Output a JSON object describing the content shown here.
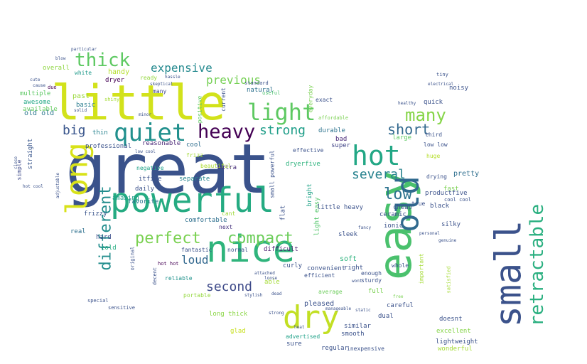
{
  "words": [
    {
      "text": "great",
      "color": "#3a528b"
    },
    {
      "text": "little",
      "color": "#d2e21b"
    },
    {
      "text": "easy",
      "color": "#4ac16d"
    },
    {
      "text": "powerful",
      "color": "#25ab82"
    },
    {
      "text": "nice",
      "color": "#2fb47c"
    },
    {
      "text": "small",
      "color": "#3b528b"
    },
    {
      "text": "dry",
      "color": "#c2df23"
    },
    {
      "text": "long",
      "color": "#d8e219"
    },
    {
      "text": "old",
      "color": "#306a8e"
    },
    {
      "text": "hot",
      "color": "#22a785"
    },
    {
      "text": "quiet",
      "color": "#21908d"
    },
    {
      "text": "heavy",
      "color": "#440154"
    },
    {
      "text": "light",
      "color": "#5ec962"
    },
    {
      "text": "thick",
      "color": "#5ec962"
    },
    {
      "text": "retractable",
      "color": "#29af7f"
    },
    {
      "text": "perfect",
      "color": "#7ad151"
    },
    {
      "text": "compact",
      "color": "#6ccd5a"
    },
    {
      "text": "many",
      "color": "#86d549"
    },
    {
      "text": "strong",
      "color": "#1f9e89"
    },
    {
      "text": "low",
      "color": "#2c728e"
    },
    {
      "text": "several",
      "color": "#26828e"
    },
    {
      "text": "short",
      "color": "#31688e"
    },
    {
      "text": "different",
      "color": "#228d8d"
    },
    {
      "text": "big",
      "color": "#39558c"
    },
    {
      "text": "expensive",
      "color": "#23898e"
    },
    {
      "text": "previous",
      "color": "#75d054"
    },
    {
      "text": "second",
      "color": "#3e4a89"
    },
    {
      "text": "loud",
      "color": "#31678e"
    },
    {
      "text": "handy",
      "color": "#b5de2b"
    },
    {
      "text": "overall",
      "color": "#90d743"
    },
    {
      "text": "white",
      "color": "#1f9a8a"
    },
    {
      "text": "dryer",
      "color": "#440154"
    },
    {
      "text": "ready",
      "color": "#95d840"
    },
    {
      "text": "many",
      "color": "#3f4788"
    },
    {
      "text": "past",
      "color": "#9bd93c"
    },
    {
      "text": "basic",
      "color": "#287c8e"
    },
    {
      "text": "due",
      "color": "#440154"
    },
    {
      "text": "multiple",
      "color": "#5cc863"
    },
    {
      "text": "awesome",
      "color": "#22a785"
    },
    {
      "text": "available",
      "color": "#65cb5e"
    },
    {
      "text": "old old",
      "color": "#2a778e"
    },
    {
      "text": "straight",
      "color": "#39568c"
    },
    {
      "text": "simple",
      "color": "#3e4989"
    },
    {
      "text": "professional",
      "color": "#3b528b"
    },
    {
      "text": "thin",
      "color": "#26828e"
    },
    {
      "text": "reasonable",
      "color": "#482475"
    },
    {
      "text": "cool",
      "color": "#2e6e8e"
    },
    {
      "text": "frizz",
      "color": "#a2da37"
    },
    {
      "text": "extra",
      "color": "#472c7a"
    },
    {
      "text": "negative",
      "color": "#1fa188"
    },
    {
      "text": "itfive",
      "color": "#3b528b"
    },
    {
      "text": "daily",
      "color": "#3b528b"
    },
    {
      "text": "separate",
      "color": "#25848e"
    },
    {
      "text": "favorite",
      "color": "#2a768e"
    },
    {
      "text": "amazing",
      "color": "#1f9e89"
    },
    {
      "text": "frizzy",
      "color": "#3a548c"
    },
    {
      "text": "real",
      "color": "#2d708e"
    },
    {
      "text": "hard",
      "color": "#3d4e8a"
    },
    {
      "text": "cold",
      "color": "#27ad81"
    },
    {
      "text": "comfortable",
      "color": "#2e6f8e"
    },
    {
      "text": "next",
      "color": "#46337f"
    },
    {
      "text": "normal",
      "color": "#3a548c"
    },
    {
      "text": "fantastic",
      "color": "#3b528b"
    },
    {
      "text": "difficult",
      "color": "#481b6d"
    },
    {
      "text": "hot hot",
      "color": "#440154"
    },
    {
      "text": "reliable",
      "color": "#20928c"
    },
    {
      "text": "portable",
      "color": "#95d840"
    },
    {
      "text": "long thick",
      "color": "#8bd646"
    },
    {
      "text": "glad",
      "color": "#c8e020"
    },
    {
      "text": "flat",
      "color": "#3b528b"
    },
    {
      "text": "bright",
      "color": "#1fa287"
    },
    {
      "text": "beautiful",
      "color": "#addc30"
    },
    {
      "text": "cant",
      "color": "#9fda3a"
    },
    {
      "text": "light easy",
      "color": "#52c569"
    },
    {
      "text": "little heavy",
      "color": "#3b528b"
    },
    {
      "text": "dryerfive",
      "color": "#2db27d"
    },
    {
      "text": "bad",
      "color": "#482878"
    },
    {
      "text": "super",
      "color": "#414487"
    },
    {
      "text": "effective",
      "color": "#3b528b"
    },
    {
      "text": "natural",
      "color": "#2d718e"
    },
    {
      "text": "useful",
      "color": "#4ac16d"
    },
    {
      "text": "durable",
      "color": "#2c738e"
    },
    {
      "text": "exact",
      "color": "#3b528b"
    },
    {
      "text": "quick",
      "color": "#3b528b"
    },
    {
      "text": "noisy",
      "color": "#3b528b"
    },
    {
      "text": "large",
      "color": "#5ec962"
    },
    {
      "text": "third",
      "color": "#3b528b"
    },
    {
      "text": "huge",
      "color": "#b5de2b"
    },
    {
      "text": "low low",
      "color": "#3b528b"
    },
    {
      "text": "pretty",
      "color": "#2e6e8e"
    },
    {
      "text": "drying",
      "color": "#3b528b"
    },
    {
      "text": "fast",
      "color": "#7ad151"
    },
    {
      "text": "productfive",
      "color": "#3b528b"
    },
    {
      "text": "cool cool",
      "color": "#3b528b"
    },
    {
      "text": "cheap",
      "color": "#3b528b"
    },
    {
      "text": "true",
      "color": "#3b528b"
    },
    {
      "text": "black",
      "color": "#3b528b"
    },
    {
      "text": "silky",
      "color": "#3b528b"
    },
    {
      "text": "ceramic",
      "color": "#3b528b"
    },
    {
      "text": "ionic",
      "color": "#3b528b"
    },
    {
      "text": "sleek",
      "color": "#3b528b"
    },
    {
      "text": "soft",
      "color": "#2db27d"
    },
    {
      "text": "right",
      "color": "#3b528b"
    },
    {
      "text": "curly",
      "color": "#3b528b"
    },
    {
      "text": "convenient",
      "color": "#3b528b"
    },
    {
      "text": "efficient",
      "color": "#3b528b"
    },
    {
      "text": "whole",
      "color": "#3b528b"
    },
    {
      "text": "enough",
      "color": "#3b528b"
    },
    {
      "text": "sturdy",
      "color": "#3b528b"
    },
    {
      "text": "able",
      "color": "#a5db36"
    },
    {
      "text": "average",
      "color": "#6ccd5a"
    },
    {
      "text": "full",
      "color": "#7ad151"
    },
    {
      "text": "pleased",
      "color": "#3b528b"
    },
    {
      "text": "careful",
      "color": "#3b528b"
    },
    {
      "text": "dual",
      "color": "#3b528b"
    },
    {
      "text": "similar",
      "color": "#3b528b"
    },
    {
      "text": "doesnt",
      "color": "#3b528b"
    },
    {
      "text": "excellent",
      "color": "#86d549"
    },
    {
      "text": "lightweight",
      "color": "#3b528b"
    },
    {
      "text": "wonderful",
      "color": "#a5db36"
    },
    {
      "text": "smooth",
      "color": "#3b528b"
    },
    {
      "text": "sure",
      "color": "#3b528b"
    },
    {
      "text": "advertised",
      "color": "#1fa188"
    },
    {
      "text": "regular",
      "color": "#3b528b"
    },
    {
      "text": "inexpensive",
      "color": "#3b528b"
    },
    {
      "text": "important",
      "color": "#a5db36"
    },
    {
      "text": "tiny",
      "color": "#3b528b"
    },
    {
      "text": "everyday",
      "color": "#7ad151"
    },
    {
      "text": "positive",
      "color": "#5ec962"
    },
    {
      "text": "current",
      "color": "#3b528b"
    },
    {
      "text": "skeptical",
      "color": "#3b528b"
    },
    {
      "text": "hassle",
      "color": "#3b528b"
    },
    {
      "text": "standard",
      "color": "#3b528b"
    },
    {
      "text": "affordable",
      "color": "#7ad151"
    },
    {
      "text": "electrical",
      "color": "#3b528b"
    },
    {
      "text": "healthy",
      "color": "#3b528b"
    },
    {
      "text": "original",
      "color": "#3b528b"
    },
    {
      "text": "decent",
      "color": "#3b528b"
    },
    {
      "text": "fancy",
      "color": "#3b528b"
    },
    {
      "text": "personal",
      "color": "#3b528b"
    },
    {
      "text": "genuine",
      "color": "#3b528b"
    },
    {
      "text": "satisfied",
      "color": "#a5db36"
    },
    {
      "text": "special",
      "color": "#3b528b"
    },
    {
      "text": "sensitive",
      "color": "#3b528b"
    },
    {
      "text": "wont",
      "color": "#3b528b"
    },
    {
      "text": "shiny",
      "color": "#a5db36"
    },
    {
      "text": "minor",
      "color": "#3b528b"
    },
    {
      "text": "solid",
      "color": "#3b528b"
    },
    {
      "text": "dead",
      "color": "#3b528b"
    },
    {
      "text": "free",
      "color": "#7ad151"
    },
    {
      "text": "static",
      "color": "#3b528b"
    },
    {
      "text": "manageable",
      "color": "#3b528b"
    },
    {
      "text": "small powerful",
      "color": "#3b528b"
    },
    {
      "text": "blow",
      "color": "#3b528b"
    },
    {
      "text": "particular",
      "color": "#3b528b"
    },
    {
      "text": "cute",
      "color": "#3b528b"
    },
    {
      "text": "cause",
      "color": "#3b528b"
    },
    {
      "text": "close",
      "color": "#3b528b"
    },
    {
      "text": "adjustable",
      "color": "#3b528b"
    },
    {
      "text": "hot cool",
      "color": "#3b528b"
    },
    {
      "text": "low cool",
      "color": "#3b528b"
    },
    {
      "text": "loose",
      "color": "#3b528b"
    },
    {
      "text": "stylish",
      "color": "#3b528b"
    },
    {
      "text": "heat",
      "color": "#3b528b"
    },
    {
      "text": "attached",
      "color": "#3b528b"
    },
    {
      "text": "strong",
      "color": "#3b528b"
    }
  ]
}
